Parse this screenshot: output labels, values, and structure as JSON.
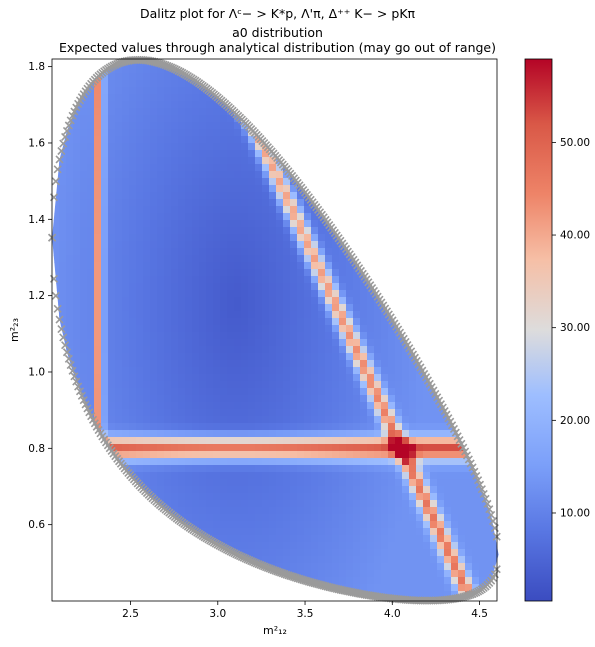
{
  "chart_data": [
    {
      "type": "heatmap",
      "title_lines": [
        "Dalitz plot for  Λᶜ− > K*p, Λ'π, Δ⁺⁺ K− > pKπ",
        "a0 distribution",
        "Expected values through analytical distribution (may go out of range)"
      ],
      "xlabel": "m²₁₂",
      "ylabel": "m²₂₃",
      "xlim": [
        2.05,
        4.6
      ],
      "ylim": [
        0.4,
        1.82
      ],
      "x_ticks": [
        2.5,
        3.0,
        3.5,
        4.0,
        4.5
      ],
      "x_tick_labels": [
        "2.5",
        "3.0",
        "3.5",
        "4.0",
        "4.5"
      ],
      "y_ticks": [
        0.6,
        0.8,
        1.0,
        1.2,
        1.4,
        1.6,
        1.8
      ],
      "y_tick_labels": [
        "0.6",
        "0.8",
        "1.0",
        "1.2",
        "1.4",
        "1.6",
        "1.8"
      ],
      "colormap": "coolwarm",
      "boundary_marker_color": "#9a9a9a",
      "resonance_bands": [
        {
          "axis": "m12",
          "center": 2.32
        },
        {
          "axis": "m23",
          "center": 0.8
        },
        {
          "axis": "m13",
          "center": 1.52
        }
      ],
      "colorbar": {
        "range": [
          0.5,
          59
        ],
        "ticks": [
          10,
          20,
          30,
          40,
          50
        ],
        "tick_labels": [
          "10.00",
          "20.00",
          "30.00",
          "40.00",
          "50.00"
        ]
      }
    }
  ]
}
